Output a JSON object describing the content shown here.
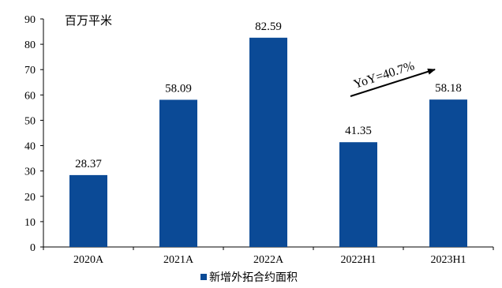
{
  "chart_data": {
    "type": "bar",
    "unit_label": "百万平米",
    "categories": [
      "2020A",
      "2021A",
      "2022A",
      "2022H1",
      "2023H1"
    ],
    "series": [
      {
        "name": "新增外拓合约面积",
        "values": [
          28.37,
          58.09,
          82.59,
          41.35,
          58.18
        ],
        "color": "#0b4a96"
      }
    ],
    "data_labels": [
      "28.37",
      "58.09",
      "82.59",
      "41.35",
      "58.18"
    ],
    "y_ticks": [
      "0",
      "10",
      "20",
      "30",
      "40",
      "50",
      "60",
      "70",
      "80",
      "90"
    ],
    "ylim": [
      0,
      90
    ],
    "grid": false,
    "legend_position": "bottom",
    "annotation": {
      "text": "YoY=40.7%",
      "arrow": "from 2022H1 to 2023H1, pointing up-right"
    }
  }
}
